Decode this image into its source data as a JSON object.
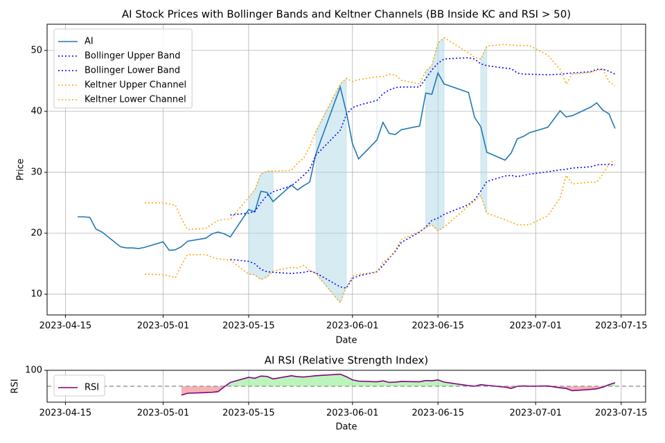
{
  "chart_data": [
    {
      "type": "line",
      "title": "AI Stock Prices with Bollinger Bands and Keltner Channels (BB Inside KC and RSI > 50)",
      "x_label": "Date",
      "y_label": "Price",
      "x": [
        "2023-04-17",
        "2023-04-18",
        "2023-04-19",
        "2023-04-20",
        "2023-04-21",
        "2023-04-24",
        "2023-04-25",
        "2023-04-26",
        "2023-04-27",
        "2023-04-28",
        "2023-05-01",
        "2023-05-02",
        "2023-05-03",
        "2023-05-04",
        "2023-05-05",
        "2023-05-08",
        "2023-05-09",
        "2023-05-10",
        "2023-05-11",
        "2023-05-12",
        "2023-05-15",
        "2023-05-16",
        "2023-05-17",
        "2023-05-18",
        "2023-05-19",
        "2023-05-22",
        "2023-05-23",
        "2023-05-24",
        "2023-05-25",
        "2023-05-26",
        "2023-05-30",
        "2023-05-31",
        "2023-06-01",
        "2023-06-02",
        "2023-06-05",
        "2023-06-06",
        "2023-06-07",
        "2023-06-08",
        "2023-06-09",
        "2023-06-12",
        "2023-06-13",
        "2023-06-14",
        "2023-06-15",
        "2023-06-16",
        "2023-06-20",
        "2023-06-21",
        "2023-06-22",
        "2023-06-23",
        "2023-06-26",
        "2023-06-27",
        "2023-06-28",
        "2023-06-29",
        "2023-06-30",
        "2023-07-03",
        "2023-07-05",
        "2023-07-06",
        "2023-07-07",
        "2023-07-10",
        "2023-07-11",
        "2023-07-12",
        "2023-07-13",
        "2023-07-14"
      ],
      "series": [
        {
          "name": "AI",
          "color": "#1f77b4",
          "style": "solid",
          "values": [
            22.7,
            22.7,
            22.6,
            20.7,
            20.2,
            17.8,
            17.6,
            17.6,
            17.5,
            17.7,
            18.6,
            17.2,
            17.3,
            17.8,
            18.7,
            19.2,
            19.9,
            20.2,
            19.9,
            19.4,
            23.9,
            23.5,
            26.9,
            26.7,
            25.2,
            27.9,
            27.1,
            27.8,
            28.4,
            33.0,
            44.0,
            39.9,
            34.7,
            32.2,
            35.3,
            38.2,
            36.4,
            36.2,
            37.0,
            37.6,
            43.0,
            42.8,
            46.3,
            44.5,
            43.1,
            39.0,
            37.5,
            33.3,
            32.0,
            33.2,
            35.5,
            35.9,
            36.5,
            37.4,
            40.1,
            39.1,
            39.3,
            40.7,
            41.4,
            40.2,
            39.6,
            37.2
          ]
        },
        {
          "name": "Bollinger Upper Band",
          "color": "blue",
          "style": "dotted",
          "values": [
            null,
            null,
            null,
            null,
            null,
            null,
            null,
            null,
            null,
            null,
            null,
            null,
            null,
            null,
            null,
            null,
            null,
            null,
            null,
            23.0,
            23.3,
            23.6,
            25.0,
            26.2,
            26.8,
            27.8,
            28.6,
            29.5,
            30.5,
            32.8,
            36.9,
            39.5,
            40.6,
            41.0,
            41.8,
            42.9,
            43.5,
            43.9,
            44.0,
            44.0,
            45.4,
            46.8,
            47.9,
            48.6,
            48.8,
            48.6,
            47.8,
            47.5,
            47.1,
            47.0,
            46.3,
            46.1,
            46.1,
            46.0,
            46.1,
            46.2,
            46.3,
            46.5,
            46.9,
            46.9,
            46.6,
            46.1
          ]
        },
        {
          "name": "Bollinger Lower Band",
          "color": "blue",
          "style": "dotted",
          "values": [
            null,
            null,
            null,
            null,
            null,
            null,
            null,
            null,
            null,
            null,
            null,
            null,
            null,
            null,
            null,
            null,
            null,
            null,
            null,
            15.7,
            15.4,
            15.0,
            14.1,
            13.7,
            13.6,
            13.4,
            13.5,
            13.6,
            13.8,
            13.5,
            11.2,
            11.0,
            12.6,
            13.0,
            13.7,
            14.7,
            15.9,
            17.0,
            18.5,
            20.2,
            21.0,
            22.1,
            22.5,
            23.1,
            24.7,
            25.5,
            26.9,
            28.5,
            29.4,
            29.5,
            29.3,
            29.5,
            29.7,
            30.1,
            30.4,
            30.5,
            30.7,
            30.9,
            31.2,
            31.3,
            31.3,
            31.2
          ]
        },
        {
          "name": "Keltner Upper Channel",
          "color": "orange",
          "style": "dotted",
          "values": [
            null,
            null,
            null,
            null,
            null,
            null,
            null,
            null,
            null,
            25.0,
            25.0,
            24.8,
            24.6,
            22.4,
            20.6,
            20.8,
            21.5,
            22.1,
            22.3,
            22.3,
            25.9,
            27.1,
            29.7,
            30.2,
            30.2,
            30.3,
            31.5,
            32.3,
            34.2,
            36.7,
            44.5,
            45.4,
            44.9,
            45.2,
            45.7,
            45.7,
            46.1,
            46.0,
            45.1,
            44.5,
            46.6,
            47.5,
            51.2,
            52.1,
            49.6,
            48.9,
            48.6,
            50.7,
            51.0,
            50.9,
            50.8,
            50.8,
            50.8,
            49.2,
            46.9,
            44.5,
            46.1,
            46.4,
            46.7,
            46.9,
            44.9,
            44.2
          ]
        },
        {
          "name": "Keltner Lower Channel",
          "color": "orange",
          "style": "dotted",
          "values": [
            null,
            null,
            null,
            null,
            null,
            null,
            null,
            null,
            null,
            13.3,
            13.2,
            13.0,
            12.7,
            14.8,
            16.5,
            16.5,
            16.1,
            15.8,
            15.7,
            15.6,
            13.3,
            13.2,
            12.4,
            12.8,
            13.8,
            14.4,
            14.3,
            14.7,
            13.9,
            13.4,
            8.6,
            11.2,
            12.9,
            13.3,
            13.6,
            15.3,
            16.0,
            17.2,
            19.0,
            20.3,
            20.9,
            21.4,
            20.4,
            21.0,
            24.5,
            25.3,
            26.2,
            23.3,
            22.2,
            21.8,
            21.4,
            21.4,
            21.4,
            22.9,
            25.8,
            29.5,
            28.1,
            28.4,
            28.4,
            29.7,
            31.4,
            32.0
          ]
        }
      ],
      "shade_ranges": [
        [
          "2023-05-15",
          "2023-05-19"
        ],
        [
          "2023-05-26",
          "2023-05-31"
        ],
        [
          "2023-06-05",
          "2023-06-05"
        ],
        [
          "2023-06-13",
          "2023-06-16"
        ],
        [
          "2023-06-22",
          "2023-06-23"
        ]
      ],
      "shade_color": "#add8e6",
      "xlim": [
        "2023-04-12",
        "2023-07-19"
      ],
      "xticks": [
        "2023-04-15",
        "2023-05-01",
        "2023-05-15",
        "2023-06-01",
        "2023-06-15",
        "2023-07-01",
        "2023-07-15"
      ],
      "ylim": [
        6.6,
        54.3
      ],
      "yticks": [
        10,
        20,
        30,
        40,
        50
      ],
      "grid": true,
      "legend": "upper left"
    },
    {
      "type": "line",
      "title": "AI RSI (Relative Strength Index)",
      "x_label": "Date",
      "y_label": "RSI",
      "x": [
        "2023-04-17",
        "2023-04-18",
        "2023-04-19",
        "2023-04-20",
        "2023-04-21",
        "2023-04-24",
        "2023-04-25",
        "2023-04-26",
        "2023-04-27",
        "2023-04-28",
        "2023-05-01",
        "2023-05-02",
        "2023-05-03",
        "2023-05-04",
        "2023-05-05",
        "2023-05-08",
        "2023-05-09",
        "2023-05-10",
        "2023-05-11",
        "2023-05-12",
        "2023-05-15",
        "2023-05-16",
        "2023-05-17",
        "2023-05-18",
        "2023-05-19",
        "2023-05-22",
        "2023-05-23",
        "2023-05-24",
        "2023-05-25",
        "2023-05-26",
        "2023-05-30",
        "2023-05-31",
        "2023-06-01",
        "2023-06-02",
        "2023-06-05",
        "2023-06-06",
        "2023-06-07",
        "2023-06-08",
        "2023-06-09",
        "2023-06-12",
        "2023-06-13",
        "2023-06-14",
        "2023-06-15",
        "2023-06-16",
        "2023-06-20",
        "2023-06-21",
        "2023-06-22",
        "2023-06-23",
        "2023-06-26",
        "2023-06-27",
        "2023-06-28",
        "2023-06-29",
        "2023-06-30",
        "2023-07-03",
        "2023-07-05",
        "2023-07-06",
        "2023-07-07",
        "2023-07-10",
        "2023-07-11",
        "2023-07-12",
        "2023-07-13",
        "2023-07-14"
      ],
      "series": [
        {
          "name": "RSI",
          "color": "purple",
          "style": "solid",
          "values": [
            null,
            null,
            null,
            null,
            null,
            null,
            null,
            null,
            null,
            null,
            null,
            null,
            null,
            22,
            28,
            30,
            31,
            33,
            48,
            62,
            78,
            75,
            82,
            81,
            73,
            83,
            80,
            79,
            81,
            83,
            88,
            80,
            70,
            66,
            64,
            67,
            62,
            63,
            65,
            64,
            68,
            67,
            70,
            63,
            52,
            50,
            55,
            53,
            47,
            43,
            50,
            51,
            50,
            51,
            45,
            43,
            36,
            40,
            42,
            47,
            55,
            61
          ]
        }
      ],
      "threshold": 50,
      "above_color": "#90ee90",
      "below_color": "#f08080",
      "xlim": [
        "2023-04-12",
        "2023-07-19"
      ],
      "xticks": [
        "2023-04-15",
        "2023-05-01",
        "2023-05-15",
        "2023-06-01",
        "2023-06-15",
        "2023-07-01",
        "2023-07-15"
      ],
      "ylim": [
        0,
        100
      ],
      "yticks": [
        100
      ],
      "grid": true,
      "legend": "upper left"
    }
  ]
}
